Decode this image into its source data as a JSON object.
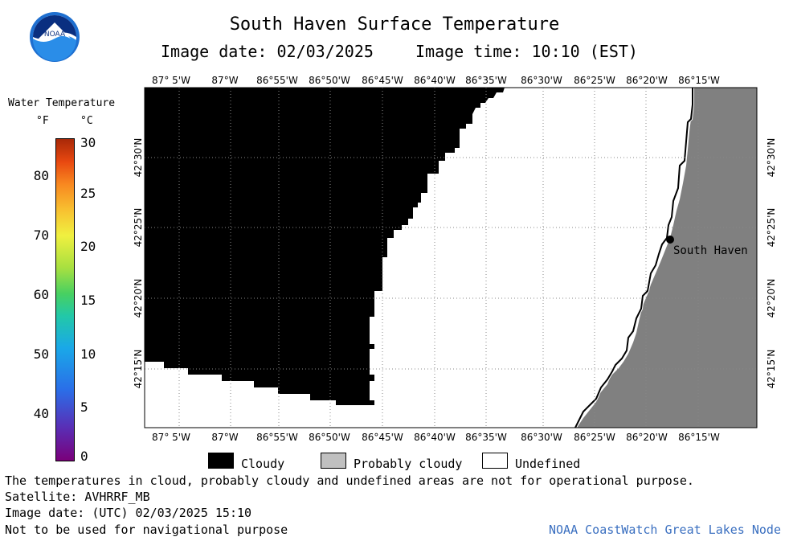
{
  "header": {
    "title": "South Haven Surface Temperature",
    "image_date": "Image date: 02/03/2025",
    "image_time": "Image time: 10:10 (EST)"
  },
  "logo": {
    "text": "NOAA"
  },
  "legend": {
    "title": "Water Temperature",
    "unit_f": "°F",
    "unit_c": "°C",
    "f_ticks": [
      "80",
      "70",
      "60",
      "50",
      "40"
    ],
    "c_ticks": [
      "30",
      "25",
      "20",
      "15",
      "10",
      "5",
      "0"
    ]
  },
  "map": {
    "lon_labels": [
      "87° 5'W",
      "87°W",
      "86°55'W",
      "86°50'W",
      "86°45'W",
      "86°40'W",
      "86°35'W",
      "86°30'W",
      "86°25'W",
      "86°20'W",
      "86°15'W"
    ],
    "lat_labels": [
      "42°30'N",
      "42°25'N",
      "42°20'N",
      "42°15'N"
    ],
    "place_label": "South Haven",
    "colors": {
      "cloud": "#000000",
      "land": "#808080",
      "undefined": "#ffffff"
    }
  },
  "key": {
    "cloudy": "Cloudy",
    "probably_cloudy": "Probably cloudy",
    "undefined": "Undefined"
  },
  "notes": {
    "line1": "The temperatures in cloud, probably cloudy and undefined areas are not for operational purpose.",
    "line2": "Satellite: AVHRRF_MB",
    "line3": "Image date: (UTC) 02/03/2025  15:10",
    "line4": "Not to be used for navigational purpose"
  },
  "credit": "NOAA CoastWatch Great Lakes Node"
}
